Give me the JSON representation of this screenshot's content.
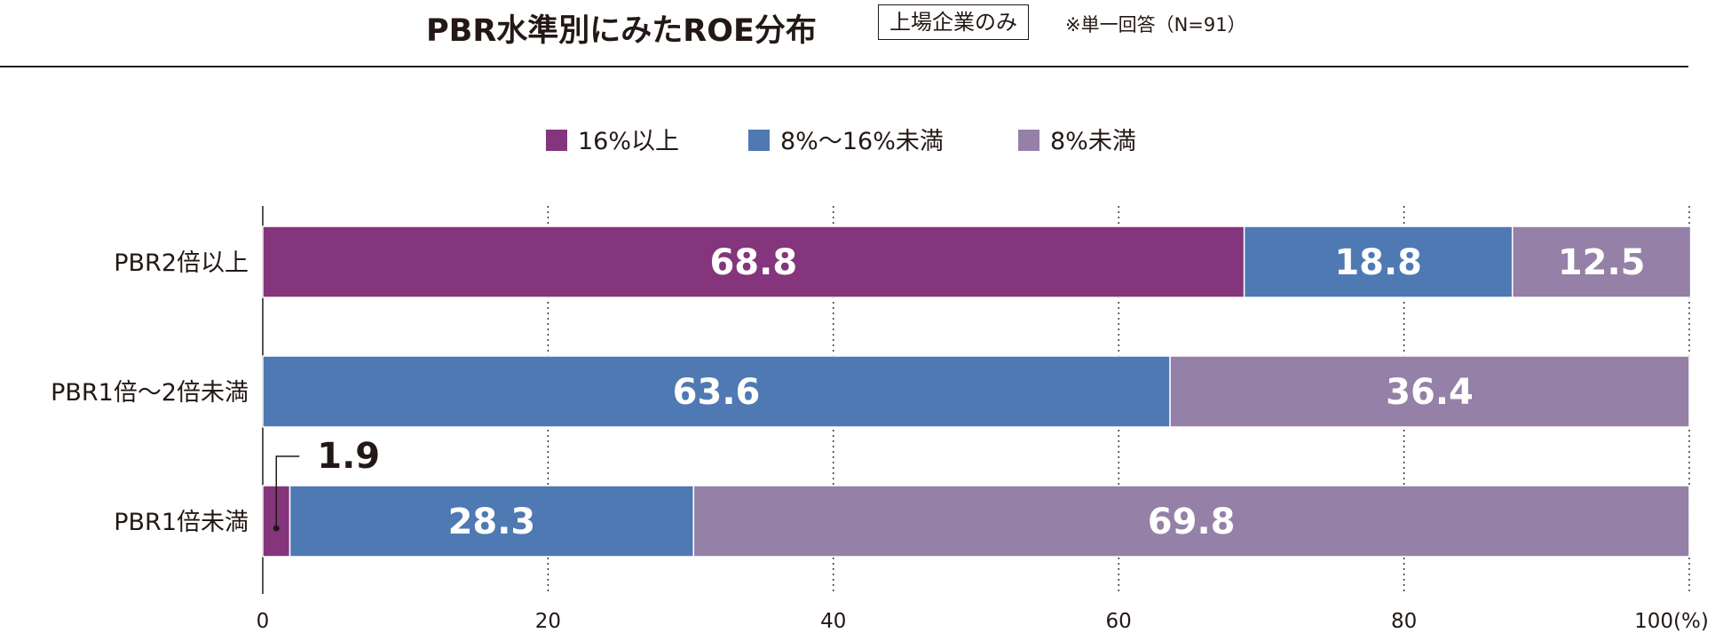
{
  "header": {
    "title": "PBR水準別にみたROE分布",
    "scope": "上場企業のみ",
    "note": "※単一回答（N=91）"
  },
  "colors": {
    "high": "#84357B",
    "mid": "#4E79B3",
    "low": "#9580A8",
    "text": "#231815"
  },
  "chart_data": {
    "type": "bar",
    "orientation": "horizontal",
    "stacked": true,
    "title": "PBR水準別にみたROE分布",
    "xlabel": "",
    "ylabel": "",
    "xlim": [
      0,
      100
    ],
    "x_ticks": [
      {
        "value": 0,
        "label": "0"
      },
      {
        "value": 20,
        "label": "20"
      },
      {
        "value": 40,
        "label": "40"
      },
      {
        "value": 60,
        "label": "60"
      },
      {
        "value": 80,
        "label": "80"
      },
      {
        "value": 100,
        "label": "100(%)"
      }
    ],
    "grid": "vertical dotted",
    "legend_position": "top-center",
    "categories": [
      "PBR2倍以上",
      "PBR1倍～2倍未満",
      "PBR1倍未満"
    ],
    "series": [
      {
        "name": "16%以上",
        "color_key": "high",
        "values": [
          68.8,
          0,
          1.9
        ],
        "labels": [
          "68.8",
          "",
          "1.9"
        ]
      },
      {
        "name": "8%～16%未満",
        "color_key": "mid",
        "values": [
          18.8,
          63.6,
          28.3
        ],
        "labels": [
          "18.8",
          "63.6",
          "28.3"
        ]
      },
      {
        "name": "8%未満",
        "color_key": "low",
        "values": [
          12.5,
          36.4,
          69.8
        ],
        "labels": [
          "12.5",
          "36.4",
          "69.8"
        ]
      }
    ]
  }
}
